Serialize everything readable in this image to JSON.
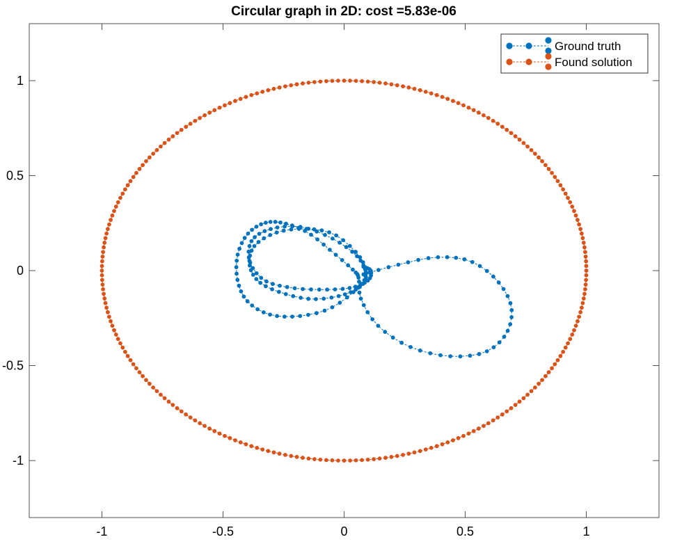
{
  "chart_data": {
    "type": "scatter",
    "title": "Circular graph in 2D: cost =5.83e-06",
    "xlabel": "",
    "ylabel": "",
    "xlim": [
      -1.3,
      1.3
    ],
    "ylim": [
      -1.3,
      1.3
    ],
    "x_ticks": [
      -1,
      -0.5,
      0,
      0.5,
      1
    ],
    "x_tick_labels": [
      "-1",
      "-0.5",
      "0",
      "0.5",
      "1"
    ],
    "y_ticks": [
      1,
      0.5,
      0,
      -0.5,
      -1
    ],
    "y_tick_labels": [
      "1",
      "0.5",
      "0",
      "-0.5",
      "-1"
    ],
    "grid": false,
    "legend_position": "top-right",
    "series": [
      {
        "name": "Ground truth",
        "color": "#0072BD",
        "marker": "circle",
        "line": "dashed",
        "curve_samples": 200,
        "x": [
          0.08,
          0.22,
          0.38,
          0.52,
          0.63,
          0.69,
          0.67,
          0.58,
          0.43,
          0.27,
          0.14,
          0.07,
          0.06,
          0.04,
          -0.05,
          -0.15,
          -0.25,
          -0.33,
          -0.4,
          -0.44,
          -0.44,
          -0.4,
          -0.31,
          -0.19,
          -0.06,
          0.05,
          0.09,
          0.06,
          -0.04,
          -0.16,
          -0.28,
          -0.37,
          -0.39,
          -0.35,
          -0.25,
          -0.13,
          -0.01,
          0.07,
          0.09,
          0.05,
          -0.05,
          -0.18,
          -0.3,
          -0.38,
          -0.39,
          -0.33,
          -0.22,
          -0.09,
          0.03,
          0.1,
          0.11,
          0.08
        ],
        "y": [
          -0.02,
          0.03,
          0.07,
          0.05,
          -0.05,
          -0.19,
          -0.33,
          -0.43,
          -0.45,
          -0.4,
          -0.29,
          -0.15,
          -0.04,
          0.0,
          0.1,
          0.2,
          0.25,
          0.25,
          0.19,
          0.08,
          -0.05,
          -0.16,
          -0.23,
          -0.24,
          -0.2,
          -0.1,
          -0.02,
          0.08,
          0.19,
          0.22,
          0.2,
          0.13,
          0.03,
          -0.06,
          -0.12,
          -0.15,
          -0.13,
          -0.08,
          -0.01,
          0.08,
          0.17,
          0.23,
          0.22,
          0.16,
          0.05,
          -0.05,
          -0.09,
          -0.1,
          -0.09,
          -0.05,
          0.0,
          0.02
        ]
      },
      {
        "name": "Found solution",
        "color": "#D95319",
        "marker": "circle",
        "line": "dashed",
        "shape": "circle",
        "center": [
          0,
          0
        ],
        "radius": 1,
        "point_count": 256
      }
    ]
  }
}
